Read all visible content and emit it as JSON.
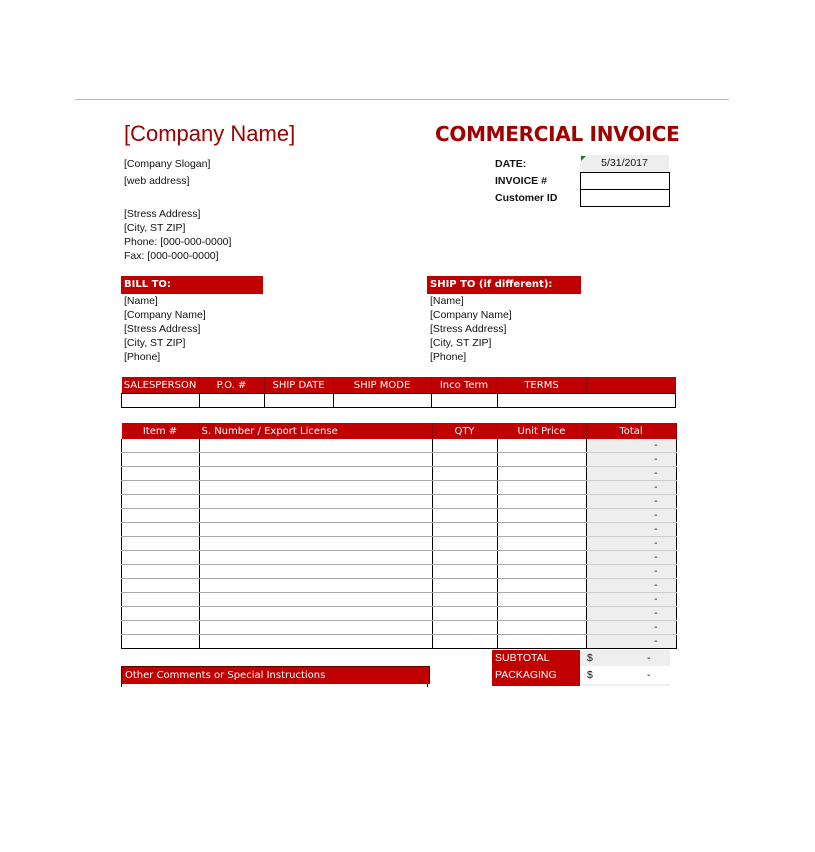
{
  "company": {
    "name": "[Company Name]",
    "slogan": "[Company Slogan]",
    "web": "[web address]",
    "address": "[Stress Address]",
    "city": "[City, ST  ZIP]",
    "phone": "Phone: [000-000-0000]",
    "fax": "Fax: [000-000-0000]"
  },
  "title": "COMMERCIAL INVOICE",
  "meta": {
    "date_label": "DATE:",
    "date_value": "5/31/2017",
    "invoice_label": "INVOICE #",
    "invoice_value": "",
    "customer_label": "Customer ID",
    "customer_value": ""
  },
  "bill_to": {
    "header": "BILL TO:",
    "name": "[Name]",
    "company": "[Company Name]",
    "address": "[Stress Address]",
    "city": "[City, ST  ZIP]",
    "phone": "[Phone]"
  },
  "ship_to": {
    "header": "SHIP TO (if different):",
    "name": "[Name]",
    "company": "[Company Name]",
    "address": "[Stress Address]",
    "city": "[City, ST  ZIP]",
    "phone": "[Phone]"
  },
  "shipping_headers": [
    "SALESPERSON",
    "P.O. #",
    "SHIP DATE",
    "SHIP MODE",
    "Inco Term",
    "TERMS",
    ""
  ],
  "item_headers": [
    "Item #",
    "S. Number / Export License",
    "QTY",
    "Unit Price",
    "Total"
  ],
  "item_totals": [
    "-",
    "-",
    "-",
    "-",
    "-",
    "-",
    "-",
    "-",
    "-",
    "-",
    "-",
    "-",
    "-",
    "-",
    "-"
  ],
  "summary": {
    "subtotal_label": "SUBTOTAL",
    "subtotal_currency": "$",
    "subtotal_value": "-",
    "packaging_label": "PACKAGING",
    "packaging_currency": "$",
    "packaging_value": "-"
  },
  "comments_header": "Other Comments or Special Instructions",
  "colors": {
    "accent": "#c00000",
    "title": "#a00000"
  }
}
